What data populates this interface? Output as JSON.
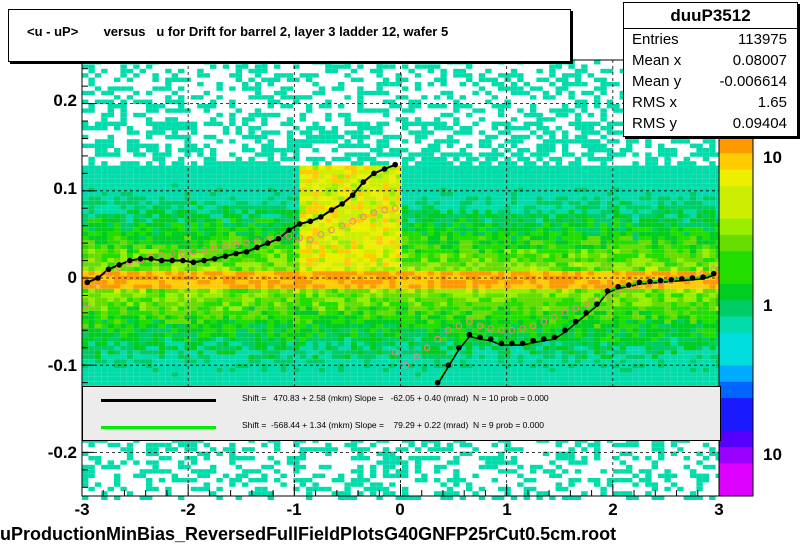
{
  "title": "<u - uP>       versus   u for Drift for barrel 2, layer 3 ladder 12, wafer 5",
  "stats": {
    "name": "duuP3512",
    "rows": [
      {
        "label": "Entries",
        "value": "113975"
      },
      {
        "label": "Mean x",
        "value": "0.08007"
      },
      {
        "label": "Mean y",
        "value": "-0.006614"
      },
      {
        "label": "RMS x",
        "value": "1.65"
      },
      {
        "label": "RMS y",
        "value": "0.09404"
      }
    ]
  },
  "fits": [
    {
      "color": "#000000",
      "text": "Shift =   470.83 + 2.58 (mkm) Slope =   -62.05 + 0.40 (mrad)  N = 10 prob = 0.000"
    },
    {
      "color": "#00ee00",
      "text": "Shift =  -568.44 + 1.34 (mkm) Slope =    79.29 + 0.22 (mrad)  N = 9 prob = 0.000"
    }
  ],
  "footer": "uProductionMinBias_ReversedFullFieldPlotsG40GNFP25rCut0.5cm.root",
  "colors": {
    "profile_black": "#000000",
    "profile_open": "#f08080",
    "fit_black": "#000000",
    "fit_green": "#00ee00"
  },
  "chart_data": {
    "type": "heatmap",
    "xlim": [
      -3,
      3
    ],
    "ylim": [
      -0.25,
      0.25
    ],
    "xticks": [
      "-3",
      "-2",
      "-1",
      "0",
      "1",
      "2",
      "3"
    ],
    "yticks": [
      "-0.2",
      "-0.1",
      "0",
      "0.1",
      "0.2"
    ],
    "zscale": "log",
    "zticks": [
      "10",
      "1",
      "10"
    ],
    "grid": true,
    "series": [
      {
        "marker": "filled-circle",
        "x": [
          -2.95,
          -2.85,
          -2.75,
          -2.65,
          -2.55,
          -2.45,
          -2.35,
          -2.25,
          -2.15,
          -2.05,
          -1.95,
          -1.85,
          -1.75,
          -1.65,
          -1.55,
          -1.45,
          -1.35,
          -1.25,
          -1.15,
          -1.05,
          -0.95,
          -0.85,
          -0.75,
          -0.65,
          -0.55,
          -0.45,
          -0.35,
          -0.25,
          -0.15,
          -0.05,
          0.35,
          0.45,
          0.55,
          0.65,
          0.75,
          0.85,
          0.95,
          1.05,
          1.15,
          1.25,
          1.35,
          1.45,
          1.55,
          1.65,
          1.75,
          1.85,
          1.95,
          2.05,
          2.15,
          2.25,
          2.35,
          2.45,
          2.55,
          2.65,
          2.75,
          2.85,
          2.95
        ],
        "y": [
          -0.005,
          0.0,
          0.01,
          0.015,
          0.02,
          0.022,
          0.022,
          0.02,
          0.02,
          0.02,
          0.018,
          0.02,
          0.022,
          0.025,
          0.028,
          0.03,
          0.035,
          0.04,
          0.045,
          0.055,
          0.062,
          0.065,
          0.07,
          0.078,
          0.085,
          0.095,
          0.11,
          0.12,
          0.125,
          0.13,
          -0.12,
          -0.1,
          -0.08,
          -0.065,
          -0.068,
          -0.07,
          -0.075,
          -0.075,
          -0.075,
          -0.072,
          -0.07,
          -0.068,
          -0.06,
          -0.05,
          -0.04,
          -0.03,
          -0.015,
          -0.01,
          -0.008,
          -0.005,
          -0.004,
          -0.003,
          -0.002,
          -0.001,
          0.0,
          0.001,
          0.005
        ]
      },
      {
        "marker": "open-circle",
        "x": [
          -2.95,
          -2.85,
          -2.75,
          -2.65,
          -2.55,
          -2.45,
          -2.35,
          -2.25,
          -2.15,
          -2.05,
          -1.95,
          -1.85,
          -1.75,
          -1.65,
          -1.55,
          -1.45,
          -1.35,
          -1.25,
          -1.15,
          -1.05,
          -0.95,
          -0.85,
          -0.75,
          -0.65,
          -0.55,
          -0.45,
          -0.35,
          -0.25,
          -0.15,
          -0.05,
          -0.05,
          0.05,
          0.15,
          0.25,
          0.35,
          0.45,
          0.55,
          0.65,
          0.75,
          0.85,
          0.95,
          1.05,
          1.15,
          1.25,
          1.35,
          1.45,
          1.55,
          1.65,
          1.75,
          1.85,
          1.95,
          2.05,
          2.15,
          2.25,
          2.35,
          2.45,
          2.55,
          2.65,
          2.75,
          2.85,
          2.95
        ],
        "y": [
          -0.03,
          -0.01,
          0.005,
          0.012,
          0.018,
          0.02,
          0.024,
          0.026,
          0.028,
          0.028,
          0.03,
          0.032,
          0.034,
          0.036,
          0.038,
          0.04,
          0.042,
          0.044,
          0.046,
          0.048,
          0.046,
          0.044,
          0.05,
          0.055,
          0.06,
          0.065,
          0.07,
          0.075,
          0.078,
          0.08,
          -0.085,
          -0.1,
          -0.09,
          -0.08,
          -0.07,
          -0.06,
          -0.055,
          -0.05,
          -0.055,
          -0.058,
          -0.06,
          -0.06,
          -0.058,
          -0.055,
          -0.05,
          -0.045,
          -0.04,
          -0.035,
          -0.03,
          -0.025,
          -0.02,
          -0.015,
          -0.01,
          -0.008,
          -0.006,
          -0.004,
          -0.003,
          0.0,
          0.002,
          0.005,
          0.01
        ]
      }
    ],
    "fit_lines": [
      {
        "x": [
          -3,
          0
        ],
        "y": [
          0.0,
          0.13
        ]
      },
      {
        "x": [
          0.4,
          2.95
        ],
        "y": [
          -0.12,
          0.005
        ]
      }
    ]
  }
}
